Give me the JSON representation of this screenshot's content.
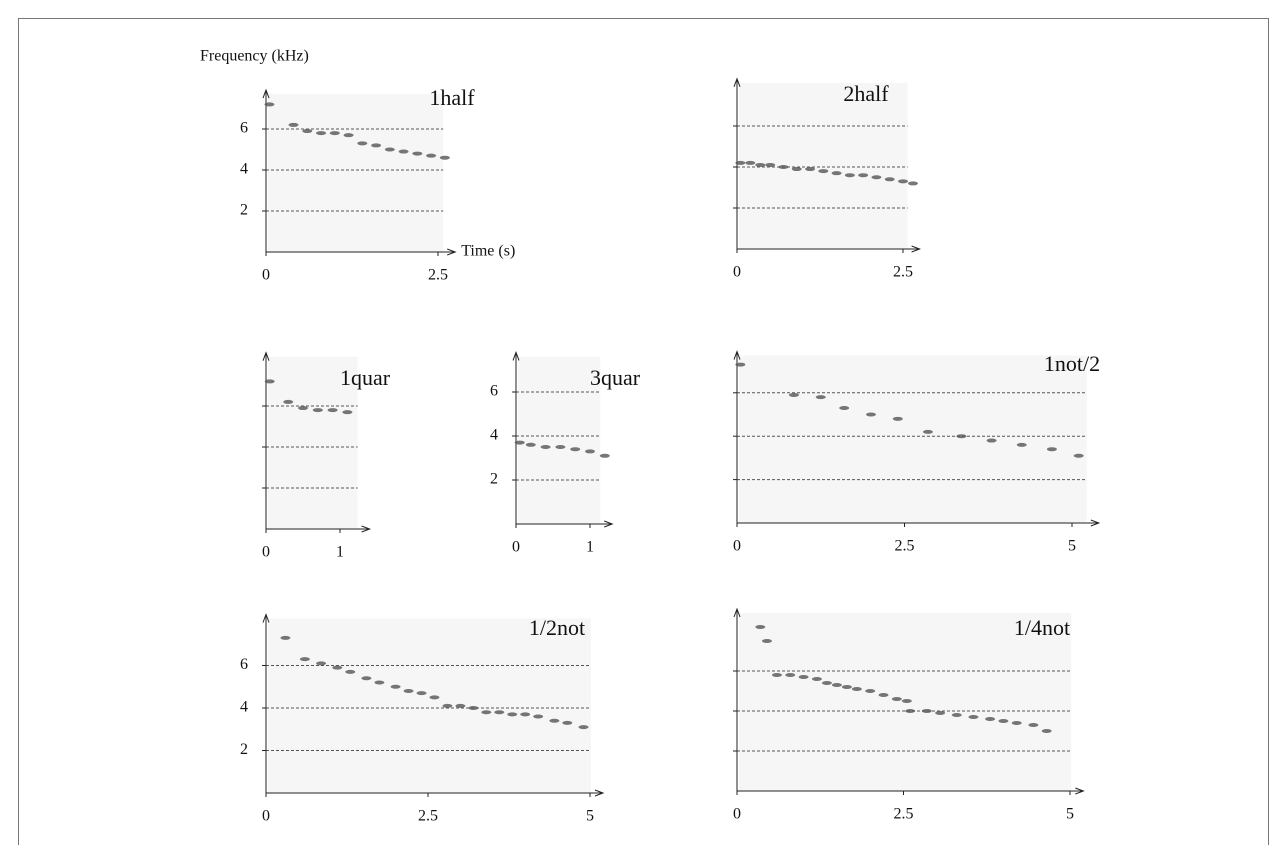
{
  "chart_data": [
    {
      "type": "spectrogram",
      "title": "1half",
      "y_label": "Frequency (kHz)",
      "x_label": "Time (s)",
      "xlim": [
        0,
        2.75
      ],
      "ylim": [
        0,
        7.9
      ],
      "xticks": [
        0,
        2.5
      ],
      "yticks": [
        2,
        4,
        6
      ],
      "ytick_labels": true,
      "grid": true,
      "color": "#555",
      "x": [
        0.05,
        0.4,
        0.6,
        0.8,
        1.0,
        1.2,
        1.4,
        1.6,
        1.8,
        2.0,
        2.2,
        2.4,
        2.6
      ],
      "values": [
        7.2,
        6.2,
        5.9,
        5.8,
        5.8,
        5.7,
        5.3,
        5.2,
        5.0,
        4.9,
        4.8,
        4.7,
        4.6
      ]
    },
    {
      "type": "spectrogram",
      "title": "2half",
      "xlim": [
        0,
        2.75
      ],
      "ylim": [
        0,
        8.3
      ],
      "xticks": [
        0,
        2.5
      ],
      "yticks": [
        2,
        4,
        6
      ],
      "ytick_labels": false,
      "grid": true,
      "color": "#555",
      "x": [
        0.05,
        0.2,
        0.35,
        0.5,
        0.7,
        0.9,
        1.1,
        1.3,
        1.5,
        1.7,
        1.9,
        2.1,
        2.3,
        2.5,
        2.65
      ],
      "values": [
        4.2,
        4.2,
        4.1,
        4.1,
        4.0,
        3.9,
        3.9,
        3.8,
        3.7,
        3.6,
        3.6,
        3.5,
        3.4,
        3.3,
        3.2
      ]
    },
    {
      "type": "spectrogram",
      "title": "1quar",
      "xlim": [
        0,
        1.4
      ],
      "ylim": [
        0,
        8.6
      ],
      "xticks": [
        0,
        1
      ],
      "yticks": [
        2,
        4,
        6
      ],
      "ytick_labels": false,
      "grid": true,
      "color": "#555",
      "x": [
        0.05,
        0.3,
        0.5,
        0.7,
        0.9,
        1.1
      ],
      "values": [
        7.2,
        6.2,
        5.9,
        5.8,
        5.8,
        5.7
      ]
    },
    {
      "type": "spectrogram",
      "title": "3quar",
      "xlim": [
        0,
        1.3
      ],
      "ylim": [
        0,
        7.8
      ],
      "xticks": [
        0,
        1
      ],
      "yticks": [
        2,
        4,
        6
      ],
      "ytick_labels": true,
      "grid": true,
      "color": "#555",
      "x": [
        0.05,
        0.2,
        0.4,
        0.6,
        0.8,
        1.0,
        1.2
      ],
      "values": [
        3.7,
        3.6,
        3.5,
        3.5,
        3.4,
        3.3,
        3.1
      ]
    },
    {
      "type": "spectrogram",
      "title": "1not/2",
      "xlim": [
        0,
        5.4
      ],
      "ylim": [
        0,
        7.9
      ],
      "xticks": [
        0,
        2.5,
        5
      ],
      "yticks": [
        2,
        4,
        6
      ],
      "ytick_labels": false,
      "grid": true,
      "color": "#555",
      "x": [
        0.05,
        0.85,
        1.25,
        1.6,
        2.0,
        2.4,
        2.85,
        3.35,
        3.8,
        4.25,
        4.7,
        5.1
      ],
      "values": [
        7.3,
        5.9,
        5.8,
        5.3,
        5.0,
        4.8,
        4.2,
        4.0,
        3.8,
        3.6,
        3.4,
        3.1
      ]
    },
    {
      "type": "spectrogram",
      "title": "1/2not",
      "xlim": [
        0,
        5.2
      ],
      "ylim": [
        0,
        8.4
      ],
      "xticks": [
        0,
        2.5,
        5
      ],
      "yticks": [
        2,
        4,
        6
      ],
      "ytick_labels": true,
      "grid": true,
      "color": "#555",
      "x": [
        0.3,
        0.6,
        0.85,
        1.1,
        1.3,
        1.55,
        1.75,
        2.0,
        2.2,
        2.4,
        2.6,
        2.8,
        3.0,
        3.2,
        3.4,
        3.6,
        3.8,
        4.0,
        4.2,
        4.45,
        4.65,
        4.9
      ],
      "values": [
        7.3,
        6.3,
        6.1,
        5.9,
        5.7,
        5.4,
        5.2,
        5.0,
        4.8,
        4.7,
        4.5,
        4.1,
        4.1,
        4.0,
        3.8,
        3.8,
        3.7,
        3.7,
        3.6,
        3.4,
        3.3,
        3.1
      ]
    },
    {
      "type": "spectrogram",
      "title": "1/4not",
      "xlim": [
        0,
        5.2
      ],
      "ylim": [
        0,
        9.1
      ],
      "xticks": [
        0,
        2.5,
        5
      ],
      "yticks": [
        2,
        4,
        6
      ],
      "ytick_labels": false,
      "grid": true,
      "color": "#555",
      "x": [
        0.35,
        0.45,
        0.6,
        0.8,
        1.0,
        1.2,
        1.35,
        1.5,
        1.65,
        1.8,
        2.0,
        2.2,
        2.4,
        2.55,
        2.6,
        2.85,
        3.05,
        3.3,
        3.55,
        3.8,
        4.0,
        4.2,
        4.45,
        4.65
      ],
      "values": [
        8.2,
        7.5,
        5.8,
        5.8,
        5.7,
        5.6,
        5.4,
        5.3,
        5.2,
        5.1,
        5.0,
        4.8,
        4.6,
        4.5,
        4.0,
        4.0,
        3.9,
        3.8,
        3.7,
        3.6,
        3.5,
        3.4,
        3.3,
        3.0
      ]
    }
  ]
}
